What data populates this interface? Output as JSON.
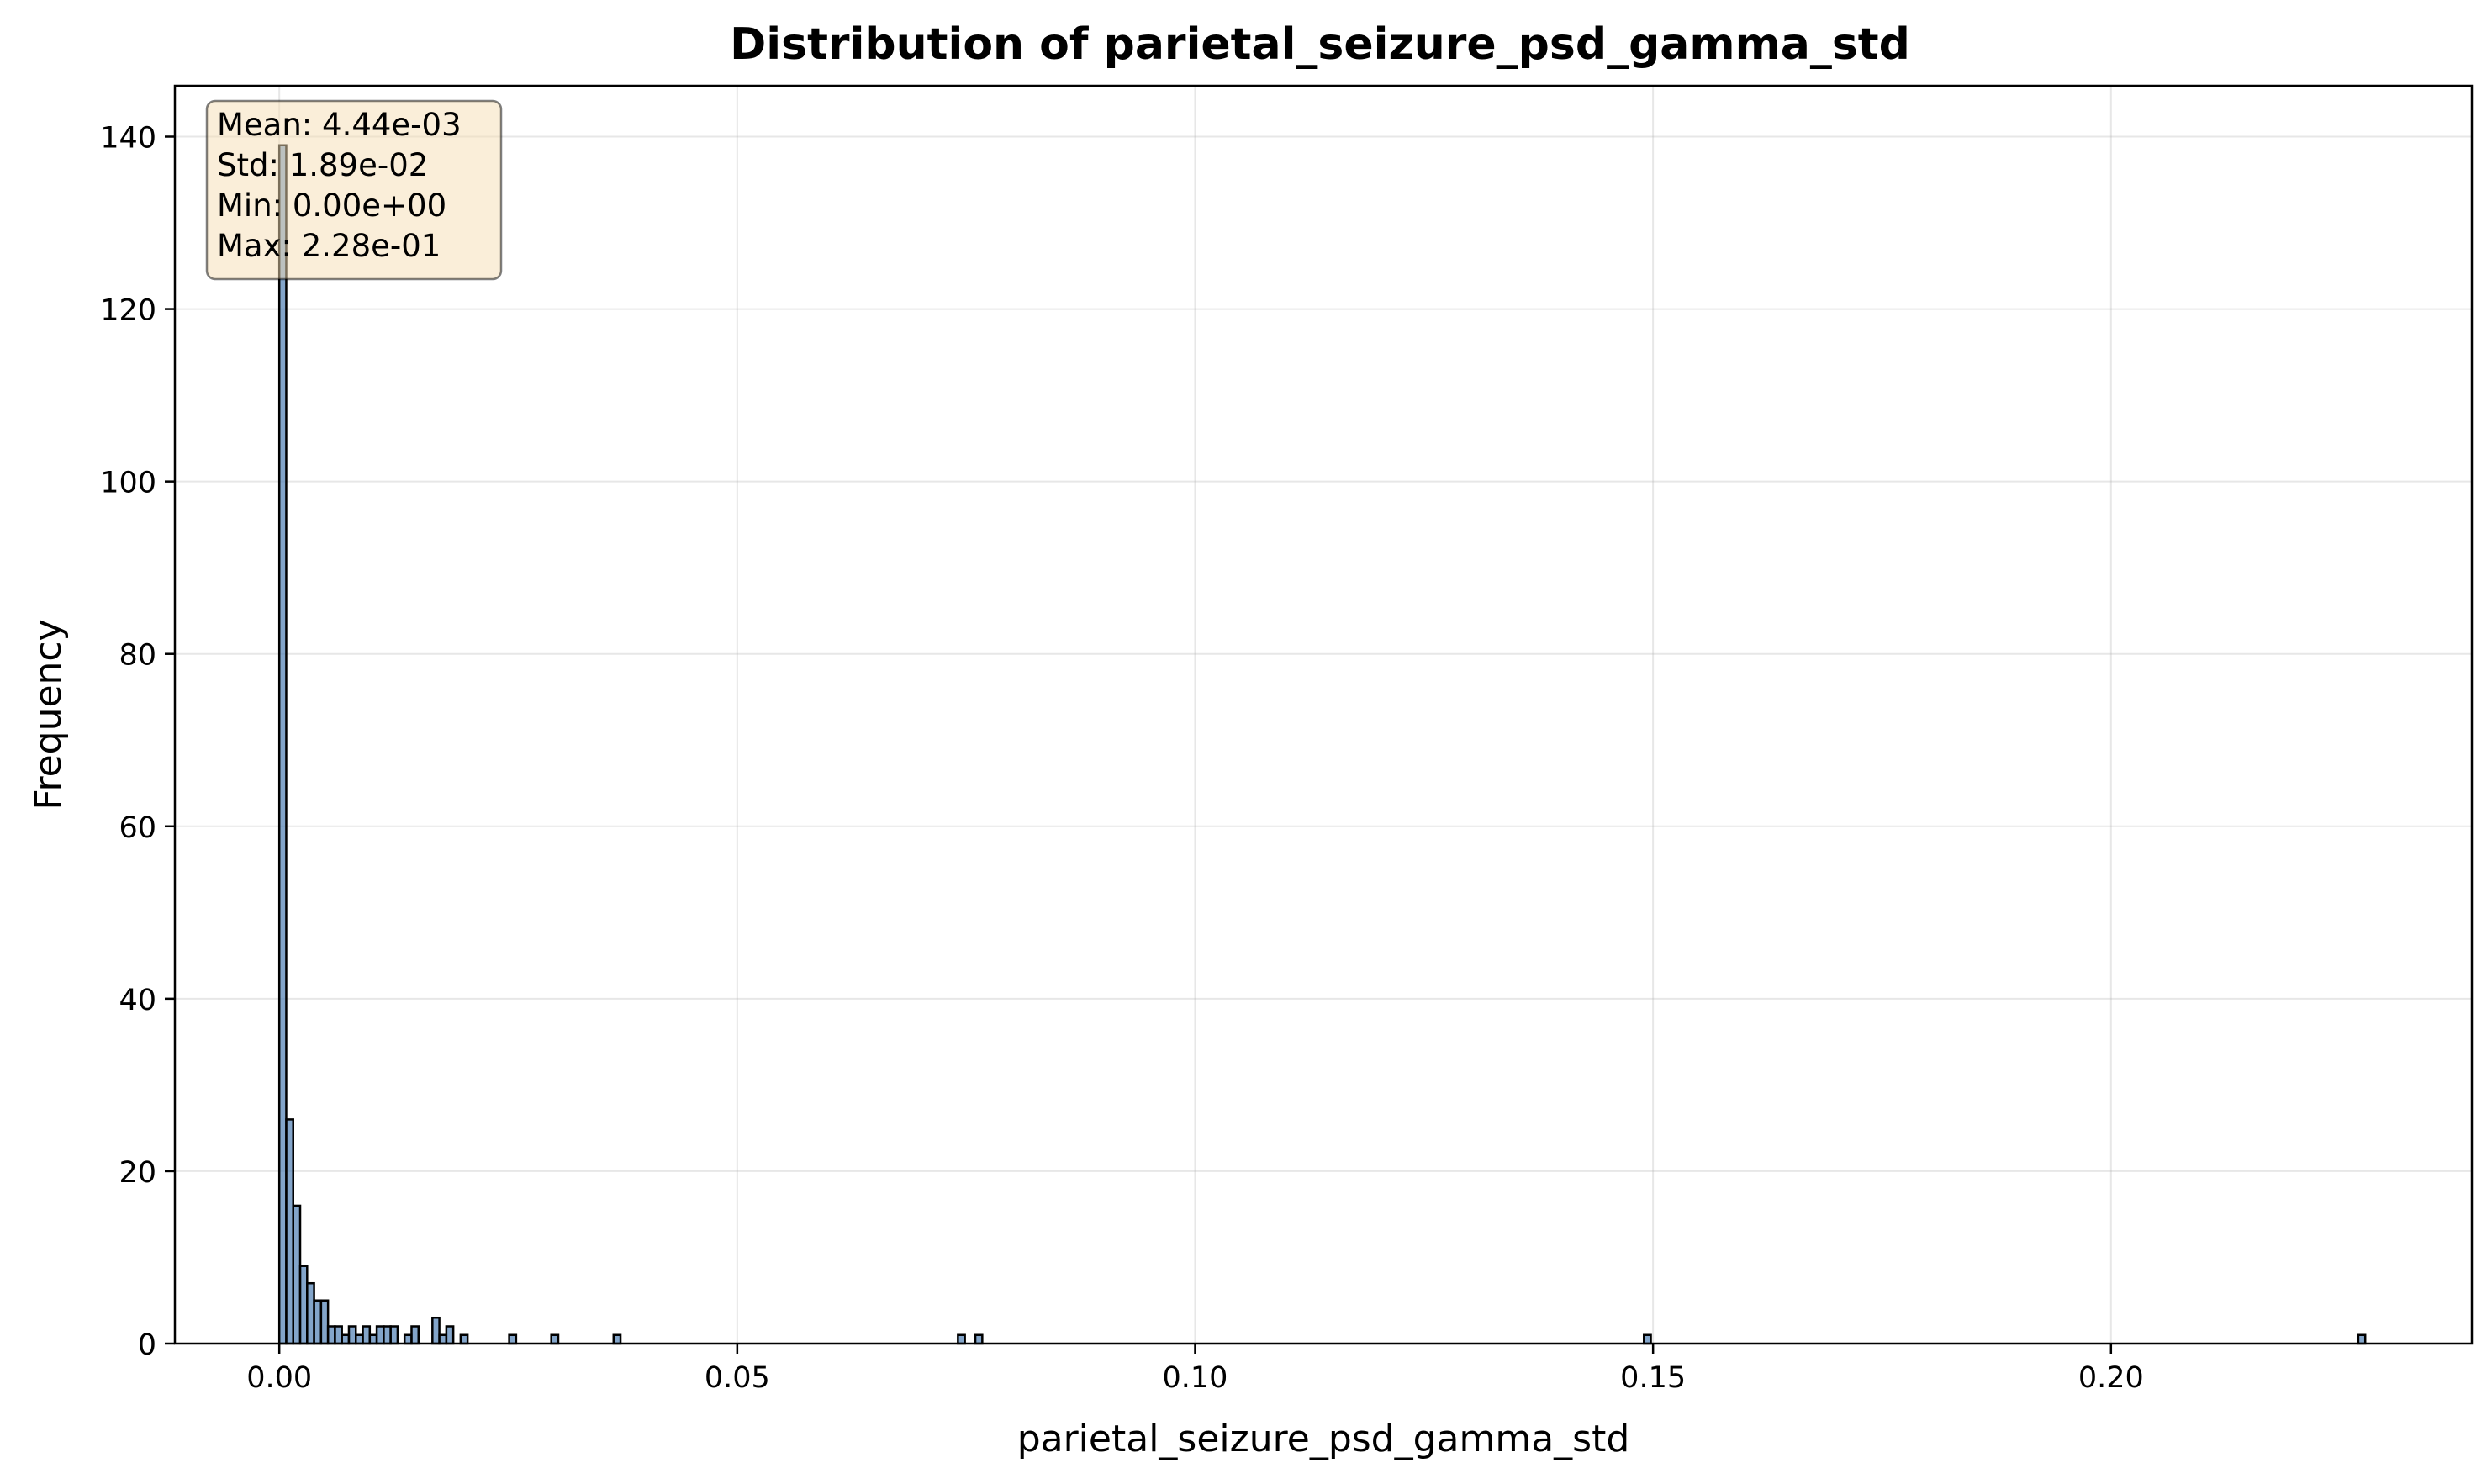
{
  "chart_data": {
    "type": "bar",
    "title": "Distribution of parietal_seizure_psd_gamma_std",
    "xlabel": "parietal_seizure_psd_gamma_std",
    "ylabel": "Frequency",
    "xlim": [
      -0.0114,
      0.2394
    ],
    "ylim": [
      0,
      145.9
    ],
    "x_ticks": [
      0.0,
      0.05,
      0.1,
      0.15,
      0.2
    ],
    "x_tick_labels": [
      "0.00",
      "0.05",
      "0.10",
      "0.15",
      "0.20"
    ],
    "y_ticks": [
      0,
      20,
      40,
      60,
      80,
      100,
      120,
      140
    ],
    "y_tick_labels": [
      "0",
      "20",
      "40",
      "60",
      "80",
      "100",
      "120",
      "140"
    ],
    "grid": true,
    "bin_width": 0.00076,
    "bar_color": "#4e7fb4",
    "bar_edge_color": "#000000",
    "bins": [
      {
        "x": 0.0,
        "count": 139
      },
      {
        "x": 0.00076,
        "count": 26
      },
      {
        "x": 0.00152,
        "count": 16
      },
      {
        "x": 0.00228,
        "count": 9
      },
      {
        "x": 0.00304,
        "count": 7
      },
      {
        "x": 0.0038,
        "count": 5
      },
      {
        "x": 0.00456,
        "count": 5
      },
      {
        "x": 0.00532,
        "count": 2
      },
      {
        "x": 0.00608,
        "count": 2
      },
      {
        "x": 0.00684,
        "count": 1
      },
      {
        "x": 0.0076,
        "count": 2
      },
      {
        "x": 0.00836,
        "count": 1
      },
      {
        "x": 0.00912,
        "count": 2
      },
      {
        "x": 0.00988,
        "count": 1
      },
      {
        "x": 0.01064,
        "count": 2
      },
      {
        "x": 0.0114,
        "count": 2
      },
      {
        "x": 0.01216,
        "count": 2
      },
      {
        "x": 0.01368,
        "count": 1
      },
      {
        "x": 0.01444,
        "count": 2
      },
      {
        "x": 0.01672,
        "count": 3
      },
      {
        "x": 0.01748,
        "count": 1
      },
      {
        "x": 0.01824,
        "count": 2
      },
      {
        "x": 0.0198,
        "count": 1
      },
      {
        "x": 0.0251,
        "count": 1
      },
      {
        "x": 0.0297,
        "count": 1
      },
      {
        "x": 0.0365,
        "count": 1
      },
      {
        "x": 0.0741,
        "count": 1
      },
      {
        "x": 0.076,
        "count": 1
      },
      {
        "x": 0.149,
        "count": 1
      },
      {
        "x": 0.227,
        "count": 1
      }
    ],
    "stats_box": {
      "mean": "Mean: 4.44e-03",
      "std": "Std: 1.89e-02",
      "min": "Min: 0.00e+00",
      "max": "Max: 2.28e-01",
      "background": "#f5deb3"
    }
  }
}
